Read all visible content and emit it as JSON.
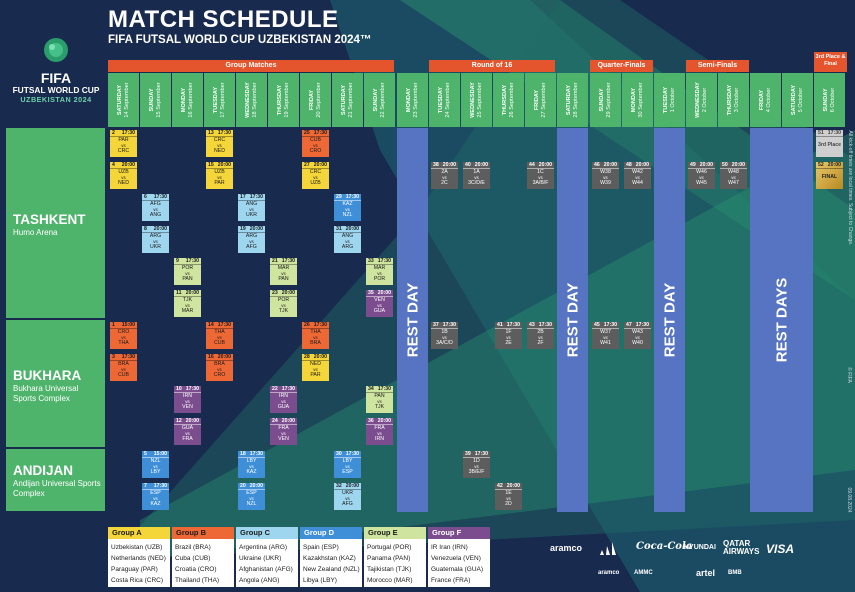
{
  "header": {
    "title": "MATCH SCHEDULE",
    "subtitle": "FIFA FUTSAL WORLD CUP UZBEKISTAN 2024™"
  },
  "logo": {
    "fifa": "FIFA",
    "futsal": "FUTSAL WORLD CUP",
    "uzb": "UZBEKISTAN 2024"
  },
  "stages": [
    "Group Matches",
    "Round of 16",
    "Quarter-Finals",
    "Semi-Finals",
    "3rd Place & Final"
  ],
  "days": [
    {
      "d": "SATURDAY",
      "t": "14 September"
    },
    {
      "d": "SUNDAY",
      "t": "15 September"
    },
    {
      "d": "MONDAY",
      "t": "16 September"
    },
    {
      "d": "TUESDAY",
      "t": "17 September"
    },
    {
      "d": "WEDNESDAY",
      "t": "18 September"
    },
    {
      "d": "THURSDAY",
      "t": "19 September"
    },
    {
      "d": "FRIDAY",
      "t": "20 September"
    },
    {
      "d": "SATURDAY",
      "t": "21 September"
    },
    {
      "d": "SUNDAY",
      "t": "22 September"
    },
    {
      "d": "MONDAY",
      "t": "23 September"
    },
    {
      "d": "TUESDAY",
      "t": "24 September"
    },
    {
      "d": "WEDNESDAY",
      "t": "25 September"
    },
    {
      "d": "THURSDAY",
      "t": "26 September"
    },
    {
      "d": "FRIDAY",
      "t": "27 September"
    },
    {
      "d": "SATURDAY",
      "t": "28 September"
    },
    {
      "d": "SUNDAY",
      "t": "29 September"
    },
    {
      "d": "MONDAY",
      "t": "30 September"
    },
    {
      "d": "TUESDAY",
      "t": "1 October"
    },
    {
      "d": "WEDNESDAY",
      "t": "2 October"
    },
    {
      "d": "THURSDAY",
      "t": "3 October"
    },
    {
      "d": "FRIDAY",
      "t": "4 October"
    },
    {
      "d": "SATURDAY",
      "t": "5 October"
    },
    {
      "d": "SUNDAY",
      "t": "6 October"
    }
  ],
  "venues": [
    {
      "name": "TASHKENT",
      "stadium": "Humo Arena"
    },
    {
      "name": "BUKHARA",
      "stadium": "Bukhara Universal Sports Complex"
    },
    {
      "name": "ANDIJAN",
      "stadium": "Andijan Universal Sports Complex"
    }
  ],
  "rest": [
    "REST DAY",
    "REST DAY",
    "REST DAY",
    "REST DAYS"
  ],
  "matches": [
    {
      "g": "gA",
      "n": "2",
      "t": "17:30",
      "a": "PAR",
      "b": "CRC"
    },
    {
      "g": "gA",
      "n": "13",
      "t": "17:30",
      "a": "CRC",
      "b": "NED"
    },
    {
      "g": "gB",
      "n": "25",
      "t": "17:30",
      "a": "CUB",
      "b": "CRO"
    },
    {
      "g": "gA",
      "n": "4",
      "t": "20:00",
      "a": "UZB",
      "b": "NED"
    },
    {
      "g": "gA",
      "n": "15",
      "t": "20:00",
      "a": "UZB",
      "b": "PAR"
    },
    {
      "g": "gA",
      "n": "27",
      "t": "20:00",
      "a": "CRC",
      "b": "UZB"
    },
    {
      "g": "gC",
      "n": "6",
      "t": "17:30",
      "a": "AFG",
      "b": "ANG"
    },
    {
      "g": "gC",
      "n": "17",
      "t": "17:30",
      "a": "ANG",
      "b": "UKR"
    },
    {
      "g": "gD",
      "n": "29",
      "t": "17:30",
      "a": "KAZ",
      "b": "NZL"
    },
    {
      "g": "gC",
      "n": "8",
      "t": "20:00",
      "a": "ARG",
      "b": "UKR"
    },
    {
      "g": "gC",
      "n": "19",
      "t": "20:00",
      "a": "ARG",
      "b": "AFG"
    },
    {
      "g": "gC",
      "n": "31",
      "t": "20:00",
      "a": "ANG",
      "b": "ARG"
    },
    {
      "g": "gE",
      "n": "9",
      "t": "17:30",
      "a": "POR",
      "b": "PAN"
    },
    {
      "g": "gE",
      "n": "21",
      "t": "17:30",
      "a": "MAR",
      "b": "PAN"
    },
    {
      "g": "gE",
      "n": "33",
      "t": "17:30",
      "a": "MAR",
      "b": "POR"
    },
    {
      "g": "gE",
      "n": "11",
      "t": "20:00",
      "a": "TJK",
      "b": "MAR"
    },
    {
      "g": "gE",
      "n": "23",
      "t": "20:00",
      "a": "POR",
      "b": "TJK"
    },
    {
      "g": "gF",
      "n": "35",
      "t": "20:00",
      "a": "VEN",
      "b": "GUA"
    },
    {
      "g": "gB",
      "n": "1",
      "t": "15:00",
      "a": "CRO",
      "b": "THA"
    },
    {
      "g": "gB",
      "n": "14",
      "t": "17:30",
      "a": "THA",
      "b": "CUB"
    },
    {
      "g": "gB",
      "n": "26",
      "t": "17:30",
      "a": "THA",
      "b": "BRA"
    },
    {
      "g": "gB",
      "n": "3",
      "t": "17:30",
      "a": "BRA",
      "b": "CUB"
    },
    {
      "g": "gB",
      "n": "16",
      "t": "20:00",
      "a": "BRA",
      "b": "CRO"
    },
    {
      "g": "gA",
      "n": "28",
      "t": "20:00",
      "a": "NED",
      "b": "PAR"
    },
    {
      "g": "gF",
      "n": "10",
      "t": "17:30",
      "a": "IRN",
      "b": "VEN"
    },
    {
      "g": "gF",
      "n": "22",
      "t": "17:30",
      "a": "IRN",
      "b": "GUA"
    },
    {
      "g": "gE",
      "n": "34",
      "t": "17:30",
      "a": "PAN",
      "b": "TJK"
    },
    {
      "g": "gF",
      "n": "12",
      "t": "20:00",
      "a": "GUA",
      "b": "FRA"
    },
    {
      "g": "gF",
      "n": "24",
      "t": "20:00",
      "a": "FRA",
      "b": "VEN"
    },
    {
      "g": "gF",
      "n": "36",
      "t": "20:00",
      "a": "FRA",
      "b": "IRN"
    },
    {
      "g": "gD",
      "n": "5",
      "t": "15:00",
      "a": "NZL",
      "b": "LBY"
    },
    {
      "g": "gD",
      "n": "18",
      "t": "17:30",
      "a": "LBY",
      "b": "KAZ"
    },
    {
      "g": "gD",
      "n": "30",
      "t": "17:30",
      "a": "LBY",
      "b": "ESP"
    },
    {
      "g": "gD",
      "n": "7",
      "t": "17:30",
      "a": "ESP",
      "b": "KAZ"
    },
    {
      "g": "gD",
      "n": "20",
      "t": "20:00",
      "a": "ESP",
      "b": "NZL"
    },
    {
      "g": "gC",
      "n": "32",
      "t": "20:00",
      "a": "UKR",
      "b": "AFG"
    },
    {
      "g": "gK",
      "n": "38",
      "t": "20:00",
      "a": "2A",
      "b": "2C"
    },
    {
      "g": "gK",
      "n": "40",
      "t": "20:00",
      "a": "1A",
      "b": "3C/D/E"
    },
    {
      "g": "gK",
      "n": "44",
      "t": "20:00",
      "a": "1C",
      "b": "3A/B/F"
    },
    {
      "g": "gK",
      "n": "37",
      "t": "17:30",
      "a": "1B",
      "b": "3A/C/D"
    },
    {
      "g": "gK",
      "n": "41",
      "t": "17:30",
      "a": "1F",
      "b": "2E"
    },
    {
      "g": "gK",
      "n": "43",
      "t": "17:30",
      "a": "2B",
      "b": "2F"
    },
    {
      "g": "gK",
      "n": "39",
      "t": "17:30",
      "a": "1D",
      "b": "3B/E/F"
    },
    {
      "g": "gK",
      "n": "42",
      "t": "20:00",
      "a": "1E",
      "b": "2D"
    },
    {
      "g": "gK",
      "n": "46",
      "t": "20:00",
      "a": "W38",
      "b": "W39"
    },
    {
      "g": "gK",
      "n": "48",
      "t": "20:00",
      "a": "W42",
      "b": "W44"
    },
    {
      "g": "gK",
      "n": "45",
      "t": "17:30",
      "a": "W37",
      "b": "W41"
    },
    {
      "g": "gK",
      "n": "47",
      "t": "17:30",
      "a": "W43",
      "b": "W40"
    },
    {
      "g": "gK",
      "n": "49",
      "t": "20:00",
      "a": "W46",
      "b": "W45"
    },
    {
      "g": "gK",
      "n": "50",
      "t": "20:00",
      "a": "W48",
      "b": "W47"
    },
    {
      "g": "gW",
      "n": "51",
      "t": "17:30",
      "a": "3rd Place",
      "b": ""
    },
    {
      "g": "gGold",
      "n": "52",
      "t": "20:00",
      "a": "FINAL",
      "b": ""
    }
  ],
  "vs": "vs",
  "groups": [
    {
      "name": "Group A",
      "color": "#f5d63a",
      "teams": [
        "Uzbekistan (UZB)",
        "Netherlands (NED)",
        "Paraguay (PAR)",
        "Costa Rica (CRC)"
      ]
    },
    {
      "name": "Group B",
      "color": "#ee6836",
      "teams": [
        "Brazil (BRA)",
        "Cuba (CUB)",
        "Croatia (CRO)",
        "Thailand (THA)"
      ]
    },
    {
      "name": "Group C",
      "color": "#9fd6ef",
      "teams": [
        "Argentina (ARG)",
        "Ukraine (UKR)",
        "Afghanistan (AFG)",
        "Angola (ANG)"
      ]
    },
    {
      "name": "Group D",
      "color": "#3f8fd8",
      "teams": [
        "Spain (ESP)",
        "Kazakhstan (KAZ)",
        "New Zealand (NZL)",
        "Libya (LBY)"
      ]
    },
    {
      "name": "Group E",
      "color": "#cfe59f",
      "teams": [
        "Portugal (POR)",
        "Panama (PAN)",
        "Tajikistan (TJK)",
        "Morocco (MAR)"
      ]
    },
    {
      "name": "Group F",
      "color": "#7c4d8e",
      "teams": [
        "IR Iran (IRN)",
        "Venezuela (VEN)",
        "Guatemala (GUA)",
        "France (FRA)"
      ]
    }
  ],
  "side_note": "All kick-off times are local times. Subject to Change.",
  "copyright": "© FIFA",
  "date": "09.08.2024",
  "sponsors": [
    "aramco",
    "adidas",
    "Coca-Cola",
    "HYUNDAI",
    "QATAR AIRWAYS",
    "VISA"
  ],
  "sponsors2": [
    "aramco",
    "AMMC",
    "artel",
    "BMB"
  ]
}
